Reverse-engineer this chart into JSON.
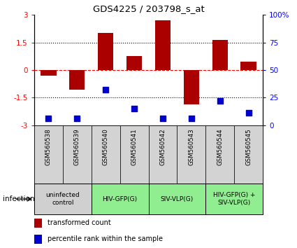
{
  "title": "GDS4225 / 203798_s_at",
  "samples": [
    "GSM560538",
    "GSM560539",
    "GSM560540",
    "GSM560541",
    "GSM560542",
    "GSM560543",
    "GSM560544",
    "GSM560545"
  ],
  "transformed_count": [
    -0.3,
    -1.05,
    2.0,
    0.75,
    2.7,
    -1.85,
    1.65,
    0.45
  ],
  "percentile_rank": [
    6,
    6,
    32,
    15,
    6,
    6,
    22,
    11
  ],
  "bar_color": "#aa0000",
  "dot_color": "#0000cc",
  "ylim_left": [
    -3,
    3
  ],
  "ylim_right": [
    0,
    100
  ],
  "yticks_left": [
    -3,
    -1.5,
    0,
    1.5,
    3
  ],
  "yticks_right": [
    0,
    25,
    50,
    75,
    100
  ],
  "yticklabels_left": [
    "-3",
    "-1.5",
    "0",
    "1.5",
    "3"
  ],
  "yticklabels_right": [
    "0",
    "25",
    "50",
    "75",
    "100%"
  ],
  "infection_groups": [
    {
      "label": "uninfected\ncontrol",
      "start": 0,
      "end": 2,
      "color": "#d0d0d0"
    },
    {
      "label": "HIV-GFP(G)",
      "start": 2,
      "end": 4,
      "color": "#90ee90"
    },
    {
      "label": "SIV-VLP(G)",
      "start": 4,
      "end": 6,
      "color": "#90ee90"
    },
    {
      "label": "HIV-GFP(G) +\nSIV-VLP(G)",
      "start": 6,
      "end": 8,
      "color": "#90ee90"
    }
  ],
  "sample_box_color": "#d3d3d3",
  "legend_items": [
    {
      "color": "#aa0000",
      "label": "transformed count"
    },
    {
      "color": "#0000cc",
      "label": "percentile rank within the sample"
    }
  ],
  "infection_label": "infection",
  "bar_width": 0.55,
  "dot_size": 40
}
